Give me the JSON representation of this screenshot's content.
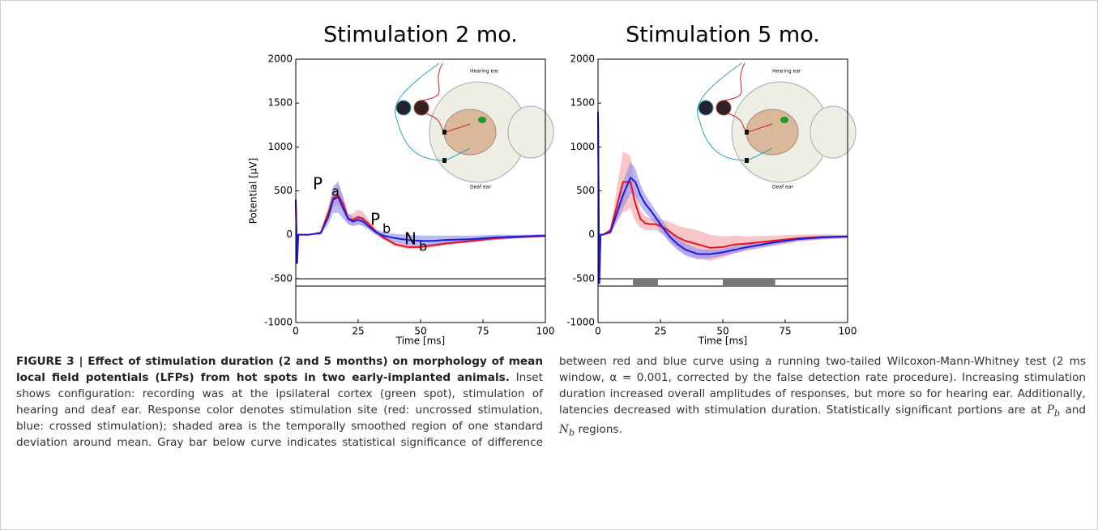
{
  "chart_data": [
    {
      "type": "line",
      "title": "Stimulation 2 mo.",
      "xlabel": "Time [ms]",
      "ylabel": "Potential [µV]",
      "xlim": [
        0,
        100
      ],
      "ylim": [
        -1000,
        2000
      ],
      "xticks": [
        0,
        25,
        50,
        75,
        100
      ],
      "yticks": [
        -1000,
        -500,
        0,
        500,
        1000,
        1500,
        2000
      ],
      "x": [
        0,
        0.5,
        1,
        2,
        5,
        10,
        13,
        15,
        17,
        19,
        21,
        23,
        25,
        27,
        29,
        32,
        35,
        40,
        45,
        50,
        55,
        60,
        70,
        80,
        90,
        100
      ],
      "series": [
        {
          "name": "red",
          "color": "#e0141e",
          "band_color": "#f4a0a0",
          "values": [
            400,
            -330,
            0,
            0,
            0,
            20,
            250,
            420,
            450,
            350,
            180,
            170,
            200,
            180,
            130,
            40,
            -30,
            -110,
            -140,
            -140,
            -120,
            -100,
            -70,
            -40,
            -25,
            -15
          ],
          "spread": [
            0,
            0,
            0,
            0,
            0,
            20,
            60,
            100,
            120,
            90,
            60,
            70,
            90,
            80,
            50,
            30,
            25,
            25,
            25,
            25,
            25,
            20,
            20,
            15,
            15,
            10
          ]
        },
        {
          "name": "blue",
          "color": "#1a1ae0",
          "band_color": "#8c8cf0",
          "values": [
            400,
            -330,
            0,
            0,
            0,
            20,
            200,
            400,
            430,
            300,
            180,
            150,
            170,
            150,
            100,
            30,
            -10,
            -40,
            -60,
            -70,
            -70,
            -60,
            -50,
            -30,
            -20,
            -10
          ],
          "spread": [
            0,
            0,
            0,
            0,
            0,
            20,
            80,
            150,
            180,
            120,
            60,
            50,
            50,
            50,
            40,
            30,
            40,
            50,
            60,
            60,
            60,
            50,
            40,
            30,
            20,
            15
          ]
        }
      ],
      "significance": [],
      "annotations": [
        {
          "text": "P",
          "sub": "a"
        },
        {
          "text": "P",
          "sub": "b"
        },
        {
          "text": "N",
          "sub": "b"
        }
      ],
      "inset_labels": [
        "Hearing ear",
        "Deaf ear"
      ]
    },
    {
      "type": "line",
      "title": "Stimulation 5 mo.",
      "xlabel": "Time [ms]",
      "xlim": [
        0,
        100
      ],
      "ylim": [
        -1000,
        2000
      ],
      "xticks": [
        0,
        25,
        50,
        75,
        100
      ],
      "yticks": [
        -1000,
        -500,
        0,
        500,
        1000,
        1500,
        2000
      ],
      "x": [
        0,
        0.5,
        1,
        2,
        5,
        10,
        13,
        15,
        17,
        19,
        21,
        23,
        25,
        27,
        29,
        32,
        35,
        40,
        45,
        50,
        55,
        60,
        70,
        80,
        90,
        100
      ],
      "series": [
        {
          "name": "red",
          "color": "#e0141e",
          "band_color": "#f4a0a0",
          "values": [
            1400,
            -560,
            0,
            0,
            50,
            600,
            600,
            350,
            180,
            130,
            120,
            120,
            100,
            70,
            30,
            -30,
            -70,
            -110,
            -150,
            -140,
            -110,
            -100,
            -70,
            -40,
            -25,
            -20
          ],
          "spread": [
            0,
            0,
            0,
            0,
            30,
            350,
            300,
            200,
            100,
            80,
            70,
            70,
            80,
            90,
            110,
            130,
            150,
            160,
            150,
            120,
            100,
            80,
            60,
            40,
            30,
            20
          ]
        },
        {
          "name": "blue",
          "color": "#1a1ae0",
          "band_color": "#8c8cf0",
          "values": [
            1400,
            -560,
            0,
            0,
            30,
            450,
            650,
            600,
            450,
            350,
            280,
            200,
            120,
            40,
            -30,
            -110,
            -170,
            -220,
            -220,
            -200,
            -170,
            -140,
            -90,
            -50,
            -30,
            -20
          ],
          "spread": [
            0,
            0,
            0,
            0,
            20,
            150,
            180,
            150,
            120,
            100,
            90,
            80,
            80,
            70,
            70,
            70,
            70,
            60,
            50,
            40,
            40,
            30,
            30,
            20,
            20,
            15
          ]
        }
      ],
      "significance": [
        [
          14,
          24
        ],
        [
          50,
          71
        ]
      ],
      "annotations": [],
      "inset_labels": [
        "Hearing ear",
        "Deaf ear"
      ]
    }
  ],
  "caption": {
    "label": "FIGURE 3 | Effect of stimulation duration (2 and 5 months) on morphology of mean local field potentials (LFPs) from hot spots in two early-implanted animals.",
    "text": "Inset shows configuration: recording was at the ipsilateral cortex (green spot), stimulation of hearing and deaf ear. Response color denotes stimulation site (red: uncrossed stimulation, blue: crossed stimulation); shaded area is the temporally smoothed region of one standard deviation around mean. Gray bar below curve indicates statistical significance of difference between red and blue curve using a running two-tailed Wilcoxon-Mann-Whitney test (2 ms window, α = 0.001, corrected by the false detection rate procedure). Increasing stimulation duration increased overall amplitudes of responses, but more so for hearing ear. Additionally, latencies decreased with stimulation duration. Statistically significant portions are at",
    "symbols": [
      {
        "text": "P",
        "sub": "b"
      },
      {
        "text": "N",
        "sub": "b"
      }
    ],
    "joiner": "and",
    "tail": "regions."
  }
}
